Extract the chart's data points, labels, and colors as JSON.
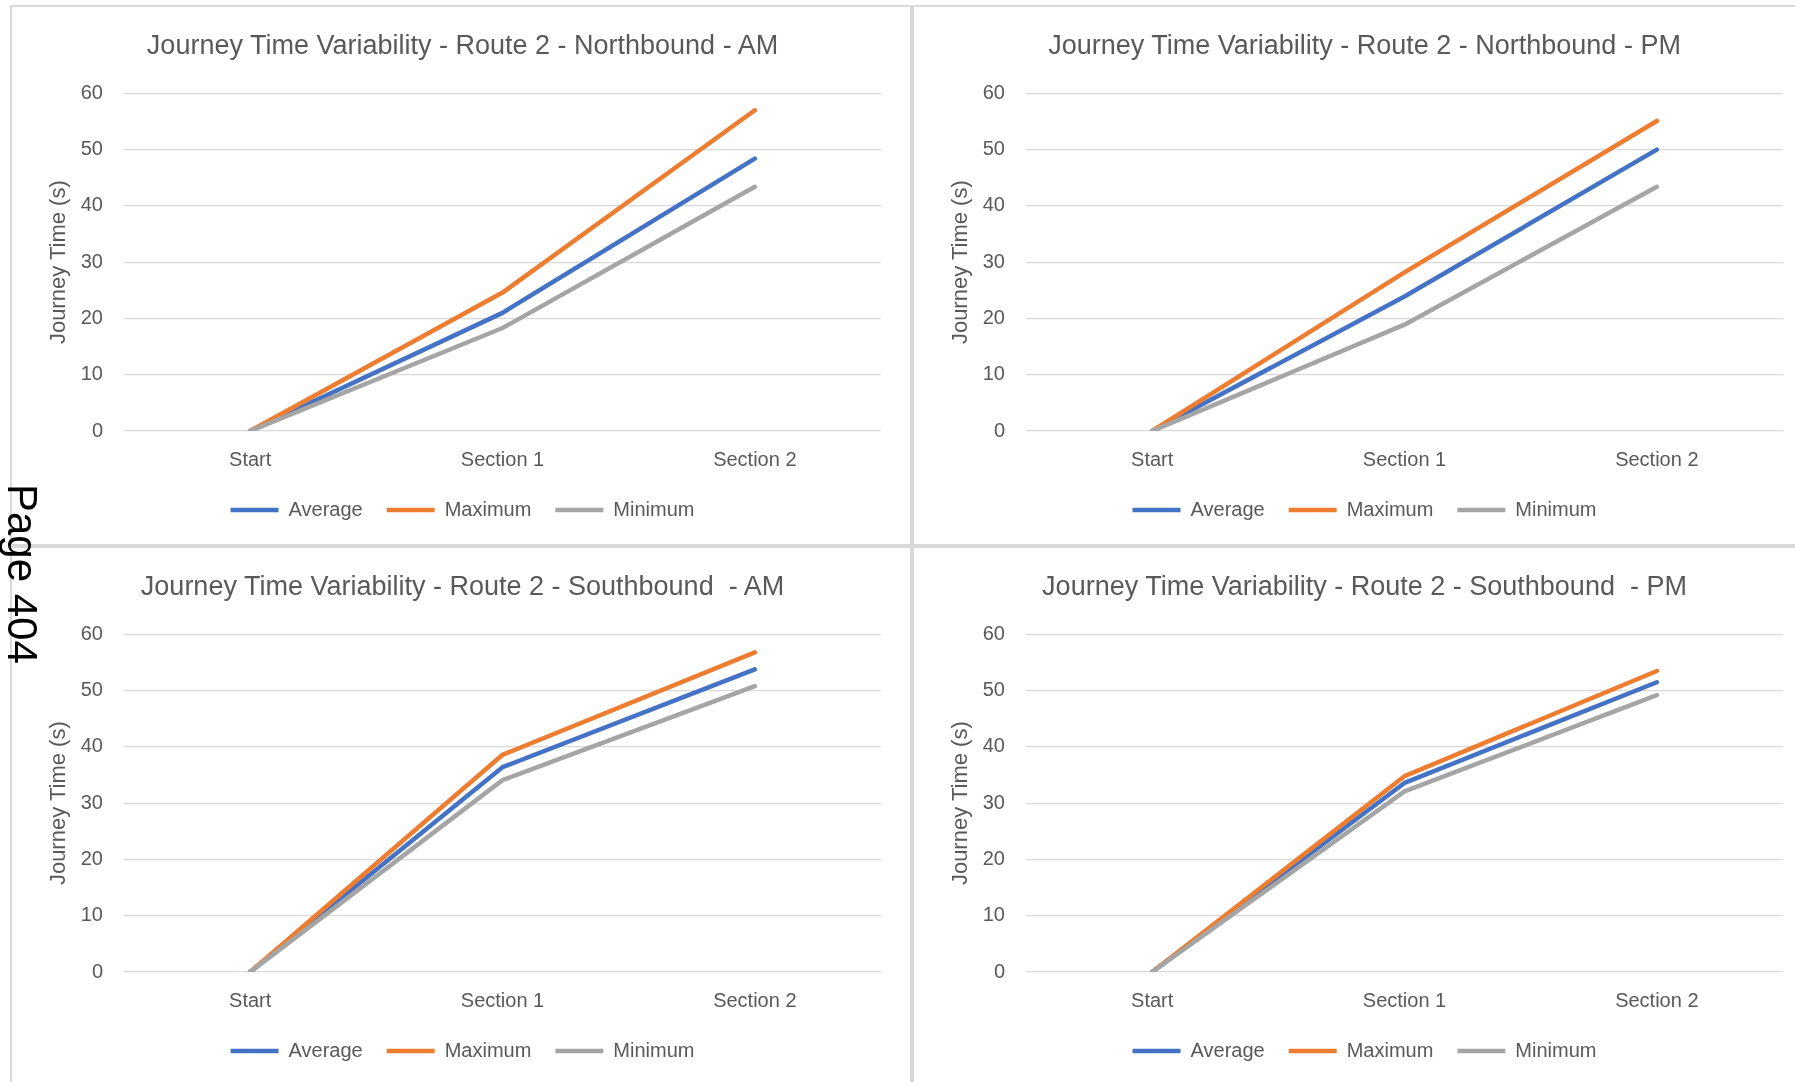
{
  "chart_data": [
    {
      "type": "line",
      "title": "Journey Time Variability - Route 2 - Northbound - AM",
      "ylabel": "Journey Time (s)",
      "categories": [
        "Start",
        "Section 1",
        "Section 2"
      ],
      "series": [
        {
          "name": "Average",
          "color": "#4472c4",
          "values": [
            0,
            21,
            48.4
          ]
        },
        {
          "name": "Maximum",
          "color": "#ed7d31",
          "values": [
            0,
            24.6,
            57
          ]
        },
        {
          "name": "Minimum",
          "color": "#a5a5a5",
          "values": [
            0,
            18.3,
            43.4
          ]
        }
      ],
      "ylim": [
        0,
        60
      ],
      "yticks": [
        0,
        10,
        20,
        30,
        40,
        50,
        60
      ],
      "grid": "y",
      "legend": "bottom",
      "marker": "none",
      "line_style": "solid"
    },
    {
      "type": "line",
      "title": "Journey Time Variability - Route 2 - Northbound - PM",
      "ylabel": "Journey Time (s)",
      "categories": [
        "Start",
        "Section 1",
        "Section 2"
      ],
      "series": [
        {
          "name": "Average",
          "color": "#4472c4",
          "values": [
            0,
            23.9,
            50
          ]
        },
        {
          "name": "Maximum",
          "color": "#ed7d31",
          "values": [
            0,
            28.2,
            55.1
          ]
        },
        {
          "name": "Minimum",
          "color": "#a5a5a5",
          "values": [
            0,
            18.9,
            43.4
          ]
        }
      ],
      "ylim": [
        0,
        60
      ],
      "yticks": [
        0,
        10,
        20,
        30,
        40,
        50,
        60
      ],
      "grid": "y",
      "legend": "bottom",
      "marker": "none",
      "line_style": "solid"
    },
    {
      "type": "line",
      "title": "Journey Time Variability - Route 2 - Southbound  - AM",
      "ylabel": "Journey Time (s)",
      "categories": [
        "Start",
        "Section 1",
        "Section 2"
      ],
      "series": [
        {
          "name": "Average",
          "color": "#4472c4",
          "values": [
            0,
            36.4,
            53.8
          ]
        },
        {
          "name": "Maximum",
          "color": "#ed7d31",
          "values": [
            0,
            38.6,
            56.8
          ]
        },
        {
          "name": "Minimum",
          "color": "#a5a5a5",
          "values": [
            0,
            34.1,
            50.8
          ]
        }
      ],
      "ylim": [
        0,
        60
      ],
      "yticks": [
        0,
        10,
        20,
        30,
        40,
        50,
        60
      ],
      "grid": "y",
      "legend": "bottom",
      "marker": "none",
      "line_style": "solid",
      "annotations": [
        "Page 404"
      ]
    },
    {
      "type": "line",
      "title": "Journey Time Variability - Route 2 - Southbound  - PM",
      "ylabel": "Journey Time (s)",
      "categories": [
        "Start",
        "Section 1",
        "Section 2"
      ],
      "series": [
        {
          "name": "Average",
          "color": "#4472c4",
          "values": [
            0,
            33.6,
            51.5
          ]
        },
        {
          "name": "Maximum",
          "color": "#ed7d31",
          "values": [
            0,
            34.8,
            53.5
          ]
        },
        {
          "name": "Minimum",
          "color": "#a5a5a5",
          "values": [
            0,
            32.1,
            49.2
          ]
        }
      ],
      "ylim": [
        0,
        60
      ],
      "yticks": [
        0,
        10,
        20,
        30,
        40,
        50,
        60
      ],
      "grid": "y",
      "legend": "bottom",
      "marker": "none",
      "line_style": "solid"
    }
  ]
}
